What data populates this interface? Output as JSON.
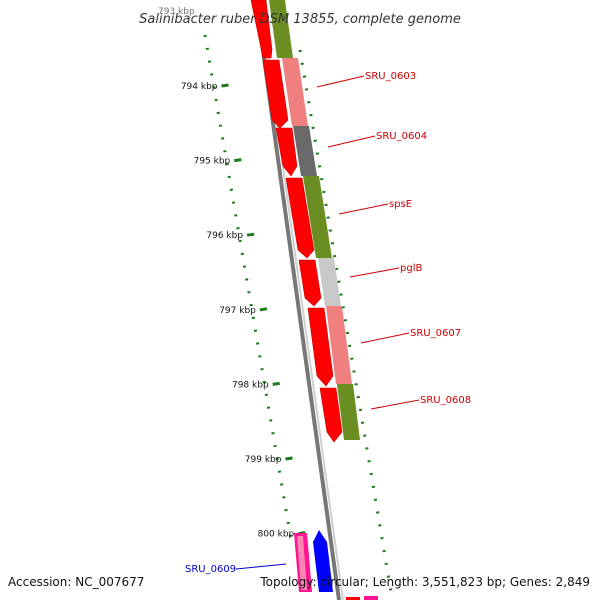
{
  "title": "Salinibacter ruber DSM 13855, complete genome",
  "ticks": [
    {
      "label": "794 kbp",
      "bp": 794000
    },
    {
      "label": "795 kbp",
      "bp": 795000
    },
    {
      "label": "796 kbp",
      "bp": 796000
    },
    {
      "label": "797 kbp",
      "bp": 797000
    },
    {
      "label": "798 kbp",
      "bp": 798000
    },
    {
      "label": "799 kbp",
      "bp": 799000
    },
    {
      "label": "800 kbp",
      "bp": 800000
    }
  ],
  "genes": [
    {
      "label": "SRU_0603",
      "color": "#cc0000"
    },
    {
      "label": "SRU_0604",
      "color": "#cc0000"
    },
    {
      "label": "spsE",
      "color": "#cc0000"
    },
    {
      "label": "pglB",
      "color": "#cc0000"
    },
    {
      "label": "SRU_0607",
      "color": "#cc0000"
    },
    {
      "label": "SRU_0608",
      "color": "#cc0000"
    },
    {
      "label": "SRU_0609",
      "color": "#0000cc"
    }
  ],
  "colors": {
    "cds": "#ff0000",
    "cog_olive": "#6b8e23",
    "cog_salmon": "#f08080",
    "cog_dark_grey": "#696969",
    "cog_light_grey": "#c8c8c8",
    "gc_skew": "#006400",
    "backbone": "#888888",
    "pink_feature": "#ff1493",
    "blue_feature": "#0000ff"
  },
  "footer": {
    "accession": "Accession: NC_007677",
    "topology": "Topology: circular; Length: 3,551,823 bp; Genes: 2,849"
  }
}
